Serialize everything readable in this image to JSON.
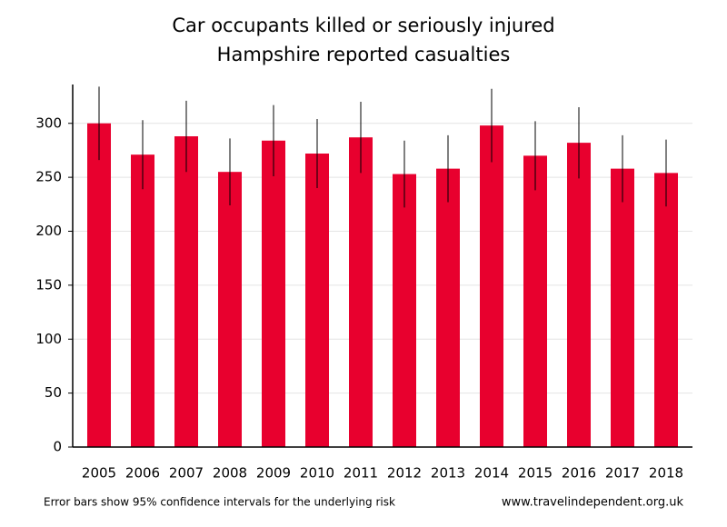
{
  "chart_data": {
    "type": "bar",
    "title": "Car occupants killed or seriously injured",
    "subtitle": "Hampshire reported casualties",
    "categories": [
      "2005",
      "2006",
      "2007",
      "2008",
      "2009",
      "2010",
      "2011",
      "2012",
      "2013",
      "2014",
      "2015",
      "2016",
      "2017",
      "2018"
    ],
    "values": [
      300,
      271,
      288,
      255,
      284,
      272,
      287,
      253,
      258,
      298,
      270,
      282,
      258,
      254
    ],
    "errors": [
      34,
      32,
      33,
      31,
      33,
      32,
      33,
      31,
      31,
      34,
      32,
      33,
      31,
      31
    ],
    "color": "#e8002e",
    "ylim": [
      0,
      336
    ],
    "yticks": [
      0,
      50,
      100,
      150,
      200,
      250,
      300
    ],
    "grid": true,
    "note": "Error bars show 95% confidence intervals for the underlying risk",
    "source": "www.travelindependent.org.uk"
  }
}
